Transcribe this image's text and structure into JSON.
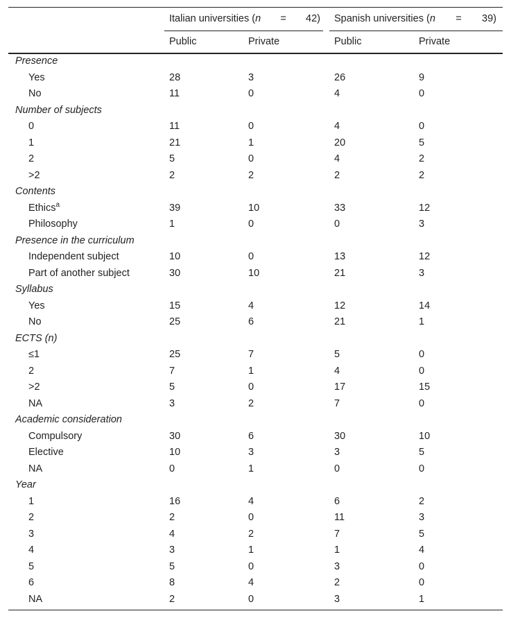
{
  "header": {
    "groups": [
      {
        "text": "Italian universities (",
        "n_label": "n",
        "equals": "=",
        "n": 42,
        "close": ")"
      },
      {
        "text": "Spanish universities (",
        "n_label": "n",
        "equals": "=",
        "n": 39,
        "close": ")"
      }
    ],
    "columns": [
      "Public",
      "Private",
      "Public",
      "Private"
    ]
  },
  "sections": [
    {
      "title": "Presence",
      "rows": [
        {
          "label": "Yes",
          "values": [
            28,
            3,
            26,
            9
          ]
        },
        {
          "label": "No",
          "values": [
            11,
            0,
            4,
            0
          ]
        }
      ]
    },
    {
      "title": "Number of subjects",
      "rows": [
        {
          "label": "0",
          "values": [
            11,
            0,
            4,
            0
          ]
        },
        {
          "label": "1",
          "values": [
            21,
            1,
            20,
            5
          ]
        },
        {
          "label": "2",
          "values": [
            5,
            0,
            4,
            2
          ]
        },
        {
          "label": ">2",
          "values": [
            2,
            2,
            2,
            2
          ]
        }
      ]
    },
    {
      "title": "Contents",
      "rows": [
        {
          "label": "Ethics",
          "note": "a",
          "values": [
            39,
            10,
            33,
            12
          ]
        },
        {
          "label": "Philosophy",
          "values": [
            1,
            0,
            0,
            3
          ]
        }
      ]
    },
    {
      "title": "Presence in the curriculum",
      "rows": [
        {
          "label": "Independent subject",
          "values": [
            10,
            0,
            13,
            12
          ]
        },
        {
          "label": "Part of another subject",
          "values": [
            30,
            10,
            21,
            3
          ]
        }
      ]
    },
    {
      "title": "Syllabus",
      "rows": [
        {
          "label": "Yes",
          "values": [
            15,
            4,
            12,
            14
          ]
        },
        {
          "label": "No",
          "values": [
            25,
            6,
            21,
            1
          ]
        }
      ]
    },
    {
      "title": "ECTS (n)",
      "rows": [
        {
          "label": "≤1",
          "values": [
            25,
            7,
            5,
            0
          ]
        },
        {
          "label": "2",
          "values": [
            7,
            1,
            4,
            0
          ]
        },
        {
          "label": ">2",
          "values": [
            5,
            0,
            17,
            15
          ]
        },
        {
          "label": "NA",
          "values": [
            3,
            2,
            7,
            0
          ]
        }
      ]
    },
    {
      "title": "Academic consideration",
      "rows": [
        {
          "label": "Compulsory",
          "values": [
            30,
            6,
            30,
            10
          ]
        },
        {
          "label": "Elective",
          "values": [
            10,
            3,
            3,
            5
          ]
        },
        {
          "label": "NA",
          "values": [
            0,
            1,
            0,
            0
          ]
        }
      ]
    },
    {
      "title": "Year",
      "rows": [
        {
          "label": "1",
          "values": [
            16,
            4,
            6,
            2
          ]
        },
        {
          "label": "2",
          "values": [
            2,
            0,
            11,
            3
          ]
        },
        {
          "label": "3",
          "values": [
            4,
            2,
            7,
            5
          ]
        },
        {
          "label": "4",
          "values": [
            3,
            1,
            1,
            4
          ]
        },
        {
          "label": "5",
          "values": [
            5,
            0,
            3,
            0
          ]
        },
        {
          "label": "6",
          "values": [
            8,
            4,
            2,
            0
          ]
        },
        {
          "label": "NA",
          "values": [
            2,
            0,
            3,
            1
          ]
        }
      ]
    }
  ]
}
